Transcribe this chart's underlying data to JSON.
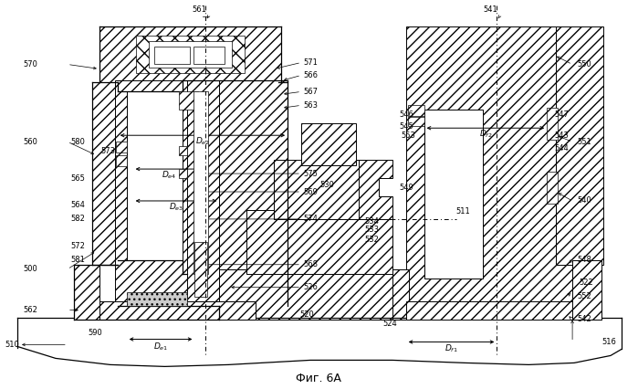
{
  "title": "Фиг. 6А",
  "bg_color": "#ffffff",
  "line_color": "#000000",
  "fig_width": 6.99,
  "fig_height": 4.26,
  "dpi": 100
}
